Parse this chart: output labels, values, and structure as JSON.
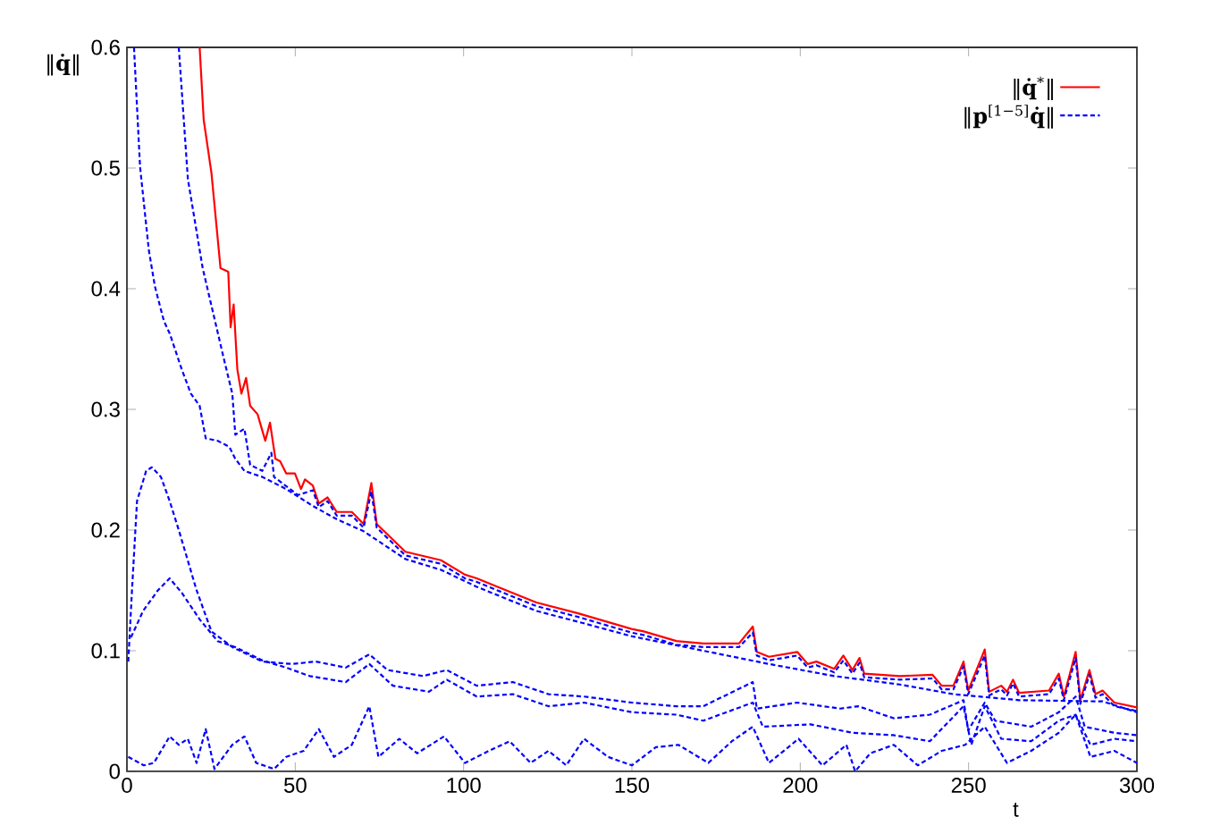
{
  "chart_data": {
    "type": "line",
    "xlabel": "t",
    "ylabel": "‖**q̇**‖",
    "xlim": [
      0,
      300
    ],
    "ylim": [
      0,
      0.6
    ],
    "xticks": [
      0,
      50,
      100,
      150,
      200,
      250,
      300
    ],
    "yticks": [
      0,
      0.1,
      0.2,
      0.3,
      0.4,
      0.5,
      0.6
    ],
    "legend": "top right",
    "series": [
      {
        "name": "‖**q̇**$^{*}$‖",
        "color": "#ff0000",
        "line_style": "solid",
        "x": [
          21.6,
          22.8,
          25.1,
          27.8,
          30.1,
          30.8,
          31.7,
          32.8,
          34,
          35.4,
          36.6,
          38.8,
          41.1,
          42.5,
          44.1,
          45.5,
          47.3,
          49.9,
          51.7,
          52.9,
          55.2,
          57,
          59.6,
          62.3,
          66.8,
          70.3,
          72.6,
          74.2,
          82.7,
          93.3,
          100.4,
          103.9,
          112.7,
          121.6,
          134,
          149.9,
          153.5,
          163.2,
          171.2,
          181.8,
          185.9,
          187.1,
          190.7,
          199.1,
          202.2,
          204.8,
          210.1,
          212.8,
          215.5,
          217.6,
          219,
          224.3,
          229.6,
          239.3,
          242,
          245.5,
          248.5,
          249.9,
          254.8,
          256.1,
          259.7,
          261.4,
          263.2,
          265,
          273.9,
          276.8,
          278.3,
          281.8,
          283.2,
          285.9,
          287.7,
          289.8,
          293.3,
          300
        ],
        "values": [
          0.6,
          0.54,
          0.496,
          0.417,
          0.414,
          0.368,
          0.387,
          0.333,
          0.313,
          0.326,
          0.303,
          0.296,
          0.274,
          0.289,
          0.259,
          0.257,
          0.247,
          0.247,
          0.234,
          0.242,
          0.237,
          0.222,
          0.227,
          0.215,
          0.215,
          0.205,
          0.239,
          0.205,
          0.182,
          0.175,
          0.163,
          0.16,
          0.15,
          0.14,
          0.131,
          0.118,
          0.116,
          0.108,
          0.106,
          0.106,
          0.12,
          0.099,
          0.095,
          0.099,
          0.089,
          0.091,
          0.085,
          0.096,
          0.084,
          0.094,
          0.081,
          0.08,
          0.079,
          0.08,
          0.071,
          0.071,
          0.091,
          0.067,
          0.101,
          0.066,
          0.071,
          0.066,
          0.076,
          0.065,
          0.067,
          0.081,
          0.062,
          0.099,
          0.059,
          0.084,
          0.064,
          0.067,
          0.057,
          0.053
        ]
      },
      {
        "name": "‖**p**$^{[1−5]}$**q̇**‖",
        "color": "#0000ff",
        "line_style": "dashed",
        "x": [
          15.4,
          18.1,
          22.5,
          28.7,
          31.3,
          32.2,
          34.9,
          36.6,
          40.2,
          42.9,
          43.7,
          50.8,
          55.2,
          57,
          59.6,
          62.3,
          66.8,
          70.3,
          72.6,
          74.2,
          82.7,
          93.3,
          100.4,
          103.9,
          112.7,
          121.6,
          134,
          149.9,
          153.5,
          163.2,
          171.2,
          181.8,
          185.9,
          187.1,
          190.7,
          199.1,
          202.2,
          204.8,
          210.1,
          212.8,
          215.5,
          217.6,
          219,
          224.3,
          229.6,
          239.3,
          242,
          245.5,
          248.5,
          249.9,
          254.8,
          256.1,
          259.7,
          261.4,
          263.2,
          265,
          273.9,
          276.8,
          278.3,
          281.8,
          283.2,
          285.9,
          287.7,
          289.8,
          293.3,
          300
        ],
        "values": [
          0.6,
          0.491,
          0.417,
          0.343,
          0.313,
          0.279,
          0.284,
          0.254,
          0.249,
          0.264,
          0.244,
          0.229,
          0.233,
          0.219,
          0.224,
          0.212,
          0.212,
          0.202,
          0.232,
          0.202,
          0.179,
          0.172,
          0.16,
          0.157,
          0.147,
          0.137,
          0.128,
          0.115,
          0.113,
          0.105,
          0.103,
          0.103,
          0.115,
          0.096,
          0.092,
          0.096,
          0.086,
          0.088,
          0.082,
          0.092,
          0.081,
          0.09,
          0.078,
          0.077,
          0.076,
          0.077,
          0.068,
          0.068,
          0.087,
          0.064,
          0.096,
          0.063,
          0.068,
          0.063,
          0.073,
          0.062,
          0.064,
          0.077,
          0.059,
          0.094,
          0.056,
          0.08,
          0.061,
          0.064,
          0.054,
          0.05
        ]
      },
      {
        "color": "#0000ff",
        "line_style": "dashed",
        "x": [
          2.1,
          3.9,
          6.5,
          8.3,
          11,
          12.7,
          14.5,
          16.3,
          19,
          21.6,
          23.4,
          26.9,
          30.4,
          32.2,
          34.9,
          40.2,
          47.3,
          55.2,
          62.3,
          70.3,
          82.7,
          93.3,
          103.9,
          121.6,
          134,
          149.9,
          171.2,
          190.7,
          210.1,
          229.6,
          245.5,
          265,
          289.8,
          300
        ],
        "values": [
          0.6,
          0.501,
          0.432,
          0.402,
          0.373,
          0.363,
          0.348,
          0.333,
          0.313,
          0.303,
          0.276,
          0.274,
          0.269,
          0.259,
          0.249,
          0.244,
          0.234,
          0.22,
          0.209,
          0.199,
          0.176,
          0.167,
          0.153,
          0.133,
          0.124,
          0.112,
          0.1,
          0.089,
          0.079,
          0.072,
          0.064,
          0.059,
          0.058,
          0.049
        ]
      },
      {
        "color": "#0000ff",
        "line_style": "dashed",
        "x": [
          0.4,
          1.5,
          3,
          5.7,
          7.4,
          10.1,
          12.7,
          15.4,
          20.7,
          25.1,
          31.3,
          40.2,
          49,
          56.1,
          65,
          72,
          77.4,
          88,
          95,
          103.9,
          114.6,
          125.2,
          135.8,
          150,
          163.2,
          171.2,
          185.9,
          187.1,
          199.1,
          211.9,
          217.2,
          227.8,
          238.5,
          248.5,
          249.9,
          254.8,
          257.9,
          268.6,
          276.8,
          281.8,
          284.5,
          293.3,
          300
        ],
        "values": [
          0.091,
          0.15,
          0.224,
          0.249,
          0.252,
          0.244,
          0.224,
          0.2,
          0.15,
          0.116,
          0.103,
          0.091,
          0.089,
          0.091,
          0.086,
          0.097,
          0.084,
          0.079,
          0.084,
          0.071,
          0.074,
          0.064,
          0.062,
          0.057,
          0.054,
          0.054,
          0.074,
          0.052,
          0.057,
          0.052,
          0.054,
          0.044,
          0.047,
          0.059,
          0.034,
          0.057,
          0.042,
          0.037,
          0.049,
          0.062,
          0.037,
          0.032,
          0.03
        ]
      },
      {
        "color": "#0000ff",
        "line_style": "dashed",
        "x": [
          1.2,
          4.8,
          9.2,
          12.7,
          16.3,
          21.6,
          26.9,
          32.2,
          40.2,
          47.3,
          54.3,
          65,
          72,
          79,
          89.7,
          95,
          103.9,
          114.6,
          125.2,
          135.8,
          150,
          163.2,
          171.2,
          185.9,
          188.9,
          203,
          215.5,
          227.8,
          238.5,
          248.5,
          250.8,
          254.8,
          259.7,
          268.6,
          276.8,
          281.8,
          286.2,
          293.3,
          300
        ],
        "values": [
          0.111,
          0.133,
          0.15,
          0.16,
          0.148,
          0.126,
          0.108,
          0.103,
          0.092,
          0.086,
          0.079,
          0.074,
          0.089,
          0.071,
          0.066,
          0.076,
          0.062,
          0.064,
          0.054,
          0.057,
          0.049,
          0.047,
          0.042,
          0.057,
          0.037,
          0.039,
          0.032,
          0.03,
          0.025,
          0.054,
          0.022,
          0.054,
          0.027,
          0.025,
          0.042,
          0.047,
          0.022,
          0.027,
          0.025
        ]
      },
      {
        "color": "#0000ff",
        "line_style": "dashed",
        "x": [
          0.4,
          5,
          8,
          12.7,
          15.4,
          18.1,
          20.7,
          23.4,
          26,
          31.3,
          34.9,
          38.4,
          43.7,
          47.3,
          52.5,
          57,
          61.5,
          66.8,
          72,
          74.7,
          80.9,
          86.2,
          94.2,
          100.4,
          107.5,
          113.7,
          119.9,
          125.2,
          130.5,
          135.8,
          142.9,
          150,
          157.1,
          163.8,
          172.7,
          179.7,
          185.9,
          190.7,
          199.5,
          206.6,
          213.7,
          216.3,
          220.8,
          227.8,
          234.9,
          242,
          249,
          254.8,
          261.4,
          268.6,
          276.8,
          281.8,
          286.2,
          293.3,
          300
        ],
        "values": [
          0.012,
          0.005,
          0.007,
          0.029,
          0.022,
          0.027,
          0.007,
          0.035,
          0.002,
          0.022,
          0.029,
          0.007,
          0.002,
          0.012,
          0.017,
          0.035,
          0.012,
          0.022,
          0.054,
          0.012,
          0.027,
          0.015,
          0.029,
          0.007,
          0.017,
          0.025,
          0.007,
          0.017,
          0.005,
          0.027,
          0.012,
          0.005,
          0.02,
          0.022,
          0.007,
          0.025,
          0.037,
          0.007,
          0.027,
          0.005,
          0.022,
          0,
          0.015,
          0.022,
          0.005,
          0.017,
          0.022,
          0.037,
          0.007,
          0.017,
          0.032,
          0.047,
          0.012,
          0.017,
          0.007
        ]
      }
    ]
  }
}
